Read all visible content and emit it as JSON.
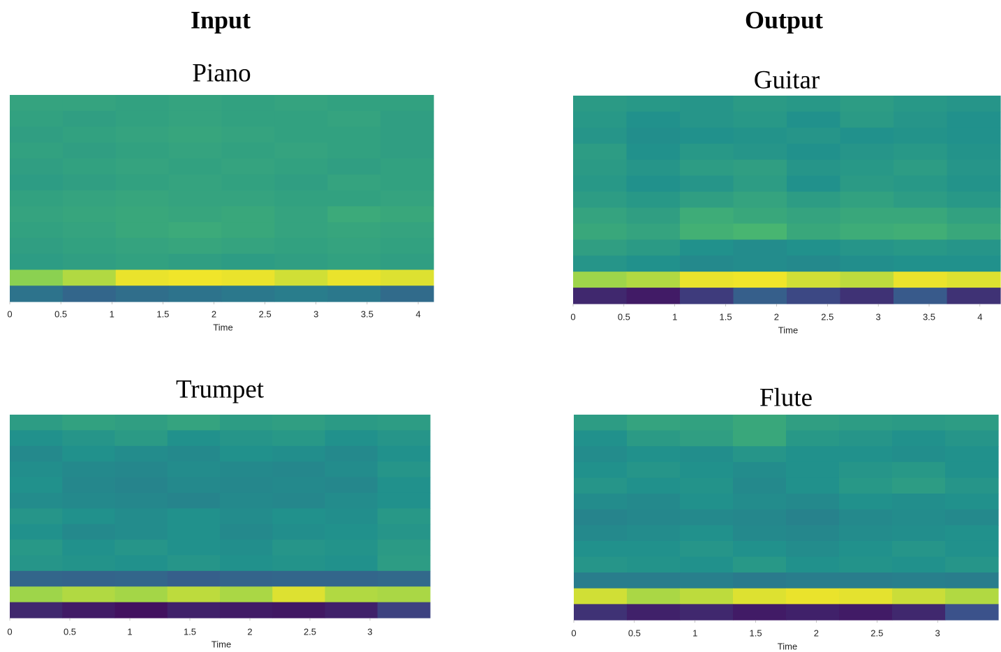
{
  "headings": [
    "Input",
    "Output"
  ],
  "chart_data": [
    {
      "type": "heatmap",
      "title": "Piano",
      "xlabel": "Time",
      "colormap": "viridis",
      "xlim": [
        0,
        4.15
      ],
      "xticks": [
        0,
        0.5,
        1,
        1.5,
        2,
        2.5,
        3,
        3.5,
        4
      ],
      "values": [
        [
          0.58,
          0.58,
          0.57,
          0.58,
          0.57,
          0.58,
          0.57,
          0.57
        ],
        [
          0.57,
          0.56,
          0.57,
          0.58,
          0.57,
          0.57,
          0.58,
          0.56
        ],
        [
          0.56,
          0.57,
          0.58,
          0.59,
          0.58,
          0.57,
          0.57,
          0.56
        ],
        [
          0.57,
          0.56,
          0.57,
          0.58,
          0.57,
          0.58,
          0.57,
          0.56
        ],
        [
          0.56,
          0.57,
          0.58,
          0.57,
          0.58,
          0.57,
          0.56,
          0.57
        ],
        [
          0.55,
          0.56,
          0.57,
          0.58,
          0.57,
          0.56,
          0.58,
          0.57
        ],
        [
          0.57,
          0.58,
          0.59,
          0.58,
          0.58,
          0.57,
          0.57,
          0.58
        ],
        [
          0.58,
          0.59,
          0.6,
          0.59,
          0.6,
          0.58,
          0.61,
          0.6
        ],
        [
          0.57,
          0.58,
          0.6,
          0.61,
          0.6,
          0.58,
          0.59,
          0.58
        ],
        [
          0.56,
          0.57,
          0.58,
          0.59,
          0.58,
          0.57,
          0.58,
          0.57
        ],
        [
          0.55,
          0.56,
          0.57,
          0.56,
          0.55,
          0.56,
          0.57,
          0.56
        ],
        [
          0.82,
          0.88,
          0.97,
          0.98,
          0.97,
          0.93,
          0.97,
          0.95
        ],
        [
          0.38,
          0.33,
          0.36,
          0.38,
          0.4,
          0.42,
          0.4,
          0.35
        ]
      ]
    },
    {
      "type": "heatmap",
      "title": "Guitar",
      "xlabel": "Time",
      "colormap": "viridis",
      "xlim": [
        0,
        4.2
      ],
      "xticks": [
        0,
        0.5,
        1,
        1.5,
        2,
        2.5,
        3,
        3.5,
        4
      ],
      "values": [
        [
          0.54,
          0.53,
          0.52,
          0.54,
          0.53,
          0.55,
          0.53,
          0.52
        ],
        [
          0.53,
          0.5,
          0.52,
          0.53,
          0.5,
          0.54,
          0.52,
          0.5
        ],
        [
          0.52,
          0.49,
          0.5,
          0.51,
          0.52,
          0.5,
          0.51,
          0.5
        ],
        [
          0.55,
          0.5,
          0.53,
          0.52,
          0.5,
          0.52,
          0.53,
          0.51
        ],
        [
          0.54,
          0.52,
          0.55,
          0.56,
          0.52,
          0.53,
          0.55,
          0.52
        ],
        [
          0.53,
          0.5,
          0.52,
          0.55,
          0.5,
          0.54,
          0.53,
          0.51
        ],
        [
          0.55,
          0.53,
          0.56,
          0.58,
          0.55,
          0.57,
          0.55,
          0.53
        ],
        [
          0.58,
          0.56,
          0.62,
          0.6,
          0.58,
          0.6,
          0.6,
          0.57
        ],
        [
          0.6,
          0.58,
          0.64,
          0.66,
          0.6,
          0.62,
          0.63,
          0.6
        ],
        [
          0.56,
          0.54,
          0.5,
          0.48,
          0.5,
          0.52,
          0.53,
          0.52
        ],
        [
          0.52,
          0.5,
          0.47,
          0.48,
          0.47,
          0.49,
          0.5,
          0.5
        ],
        [
          0.85,
          0.88,
          0.97,
          0.98,
          0.93,
          0.9,
          0.97,
          0.95
        ],
        [
          0.12,
          0.08,
          0.18,
          0.3,
          0.22,
          0.15,
          0.28,
          0.15
        ]
      ]
    },
    {
      "type": "heatmap",
      "title": "Trumpet",
      "xlabel": "Time",
      "colormap": "viridis",
      "xlim": [
        0,
        3.5
      ],
      "xticks": [
        0,
        0.5,
        1,
        1.5,
        2,
        2.5,
        3
      ],
      "values": [
        [
          0.55,
          0.57,
          0.56,
          0.58,
          0.55,
          0.56,
          0.54,
          0.55
        ],
        [
          0.5,
          0.52,
          0.54,
          0.5,
          0.52,
          0.53,
          0.5,
          0.52
        ],
        [
          0.47,
          0.5,
          0.48,
          0.47,
          0.5,
          0.49,
          0.47,
          0.5
        ],
        [
          0.49,
          0.47,
          0.46,
          0.48,
          0.47,
          0.46,
          0.48,
          0.52
        ],
        [
          0.5,
          0.46,
          0.45,
          0.47,
          0.46,
          0.47,
          0.46,
          0.5
        ],
        [
          0.48,
          0.47,
          0.46,
          0.45,
          0.47,
          0.46,
          0.48,
          0.5
        ],
        [
          0.52,
          0.5,
          0.48,
          0.5,
          0.48,
          0.5,
          0.49,
          0.53
        ],
        [
          0.5,
          0.47,
          0.48,
          0.5,
          0.47,
          0.49,
          0.5,
          0.52
        ],
        [
          0.53,
          0.5,
          0.52,
          0.5,
          0.49,
          0.52,
          0.51,
          0.54
        ],
        [
          0.52,
          0.51,
          0.5,
          0.52,
          0.5,
          0.51,
          0.5,
          0.55
        ],
        [
          0.33,
          0.32,
          0.33,
          0.3,
          0.32,
          0.33,
          0.33,
          0.34
        ],
        [
          0.85,
          0.88,
          0.86,
          0.9,
          0.87,
          0.95,
          0.88,
          0.87
        ],
        [
          0.12,
          0.08,
          0.05,
          0.1,
          0.08,
          0.07,
          0.1,
          0.2
        ]
      ]
    },
    {
      "type": "heatmap",
      "title": "Flute",
      "xlabel": "Time",
      "colormap": "viridis",
      "xlim": [
        0,
        3.5
      ],
      "xticks": [
        0,
        0.5,
        1,
        1.5,
        2,
        2.5,
        3
      ],
      "values": [
        [
          0.55,
          0.58,
          0.57,
          0.6,
          0.56,
          0.55,
          0.54,
          0.55
        ],
        [
          0.5,
          0.54,
          0.56,
          0.6,
          0.53,
          0.52,
          0.5,
          0.52
        ],
        [
          0.48,
          0.5,
          0.49,
          0.52,
          0.5,
          0.5,
          0.49,
          0.5
        ],
        [
          0.5,
          0.52,
          0.5,
          0.48,
          0.5,
          0.52,
          0.53,
          0.5
        ],
        [
          0.52,
          0.5,
          0.51,
          0.47,
          0.5,
          0.53,
          0.55,
          0.52
        ],
        [
          0.48,
          0.47,
          0.5,
          0.48,
          0.47,
          0.5,
          0.49,
          0.5
        ],
        [
          0.45,
          0.46,
          0.47,
          0.46,
          0.44,
          0.47,
          0.48,
          0.47
        ],
        [
          0.47,
          0.48,
          0.5,
          0.47,
          0.46,
          0.48,
          0.49,
          0.5
        ],
        [
          0.5,
          0.5,
          0.52,
          0.5,
          0.48,
          0.5,
          0.52,
          0.5
        ],
        [
          0.52,
          0.51,
          0.5,
          0.53,
          0.5,
          0.51,
          0.5,
          0.52
        ],
        [
          0.42,
          0.42,
          0.43,
          0.41,
          0.42,
          0.42,
          0.43,
          0.42
        ],
        [
          0.93,
          0.87,
          0.9,
          0.95,
          0.97,
          0.96,
          0.92,
          0.88
        ],
        [
          0.15,
          0.1,
          0.12,
          0.08,
          0.1,
          0.08,
          0.12,
          0.25
        ]
      ]
    }
  ]
}
